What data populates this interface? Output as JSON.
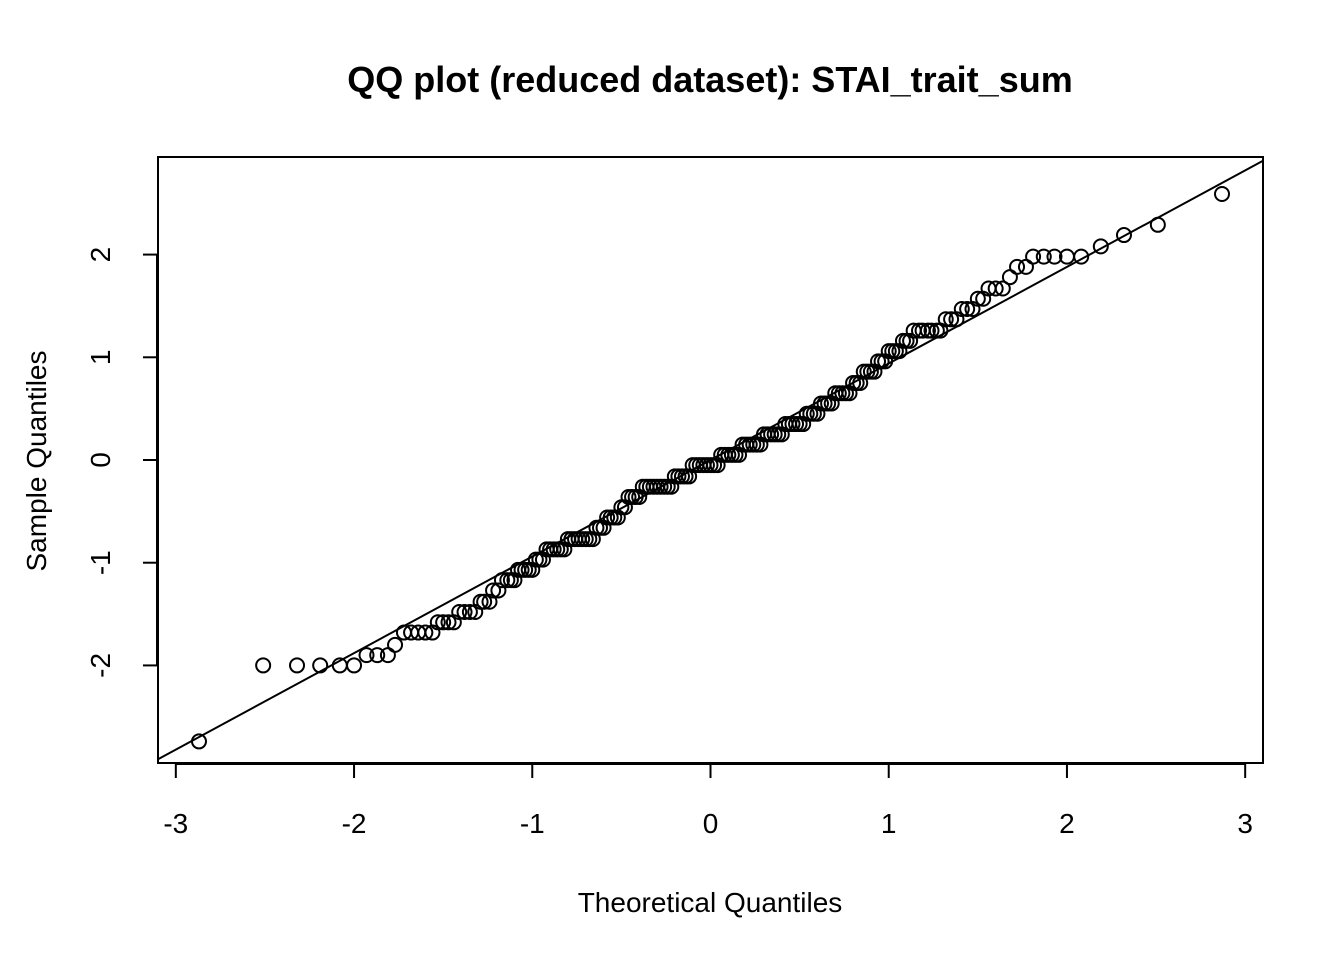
{
  "chart_data": {
    "type": "scatter",
    "title": "QQ plot (reduced dataset): STAI_trait_sum",
    "xlabel": "Theoretical Quantiles",
    "ylabel": "Sample Quantiles",
    "xlim": [
      -3.1,
      3.1
    ],
    "ylim": [
      -2.95,
      2.95
    ],
    "xticks": [
      -3,
      -2,
      -1,
      0,
      1,
      2,
      3
    ],
    "xtick_labels": [
      "-3",
      "-2",
      "-1",
      "0",
      "1",
      "2",
      "3"
    ],
    "yticks": [
      -2,
      -1,
      0,
      1,
      2
    ],
    "ytick_labels": [
      "-2",
      "-1",
      "0",
      "1",
      "2"
    ],
    "grid": false,
    "legend": "none",
    "marker": "open-circle",
    "reference_line": {
      "intercept": 0.0,
      "slope": 0.94
    },
    "series": [
      {
        "points": [
          [
            -2.87,
            -2.74
          ],
          [
            -2.51,
            -2.0
          ],
          [
            -2.32,
            -2.0
          ],
          [
            -2.19,
            -2.0
          ],
          [
            -2.08,
            -2.0
          ],
          [
            -2.0,
            -2.0
          ],
          [
            -1.93,
            -1.9
          ],
          [
            -1.87,
            -1.9
          ],
          [
            -1.81,
            -1.9
          ],
          [
            -1.77,
            -1.8
          ],
          [
            -1.72,
            -1.68
          ],
          [
            -1.68,
            -1.68
          ],
          [
            -1.64,
            -1.68
          ],
          [
            -1.6,
            -1.68
          ],
          [
            -1.56,
            -1.68
          ],
          [
            -1.53,
            -1.58
          ],
          [
            -1.5,
            -1.58
          ],
          [
            -1.47,
            -1.58
          ],
          [
            -1.44,
            -1.58
          ],
          [
            -1.41,
            -1.48
          ],
          [
            -1.38,
            -1.48
          ],
          [
            -1.35,
            -1.48
          ],
          [
            -1.32,
            -1.48
          ],
          [
            -1.29,
            -1.38
          ],
          [
            -1.27,
            -1.38
          ],
          [
            -1.24,
            -1.38
          ],
          [
            -1.22,
            -1.27
          ],
          [
            -1.19,
            -1.27
          ],
          [
            -1.17,
            -1.17
          ],
          [
            -1.14,
            -1.17
          ],
          [
            -1.12,
            -1.17
          ],
          [
            -1.1,
            -1.17
          ],
          [
            -1.08,
            -1.07
          ],
          [
            -1.06,
            -1.07
          ],
          [
            -1.04,
            -1.07
          ],
          [
            -1.02,
            -1.07
          ],
          [
            -1.0,
            -1.07
          ],
          [
            -0.98,
            -0.97
          ],
          [
            -0.96,
            -0.97
          ],
          [
            -0.94,
            -0.97
          ],
          [
            -0.92,
            -0.87
          ],
          [
            -0.9,
            -0.87
          ],
          [
            -0.88,
            -0.87
          ],
          [
            -0.86,
            -0.87
          ],
          [
            -0.84,
            -0.87
          ],
          [
            -0.82,
            -0.87
          ],
          [
            -0.8,
            -0.77
          ],
          [
            -0.78,
            -0.77
          ],
          [
            -0.76,
            -0.77
          ],
          [
            -0.74,
            -0.77
          ],
          [
            -0.72,
            -0.77
          ],
          [
            -0.7,
            -0.77
          ],
          [
            -0.68,
            -0.77
          ],
          [
            -0.66,
            -0.77
          ],
          [
            -0.64,
            -0.66
          ],
          [
            -0.62,
            -0.66
          ],
          [
            -0.6,
            -0.66
          ],
          [
            -0.58,
            -0.56
          ],
          [
            -0.56,
            -0.56
          ],
          [
            -0.54,
            -0.56
          ],
          [
            -0.52,
            -0.56
          ],
          [
            -0.5,
            -0.46
          ],
          [
            -0.48,
            -0.46
          ],
          [
            -0.46,
            -0.36
          ],
          [
            -0.44,
            -0.36
          ],
          [
            -0.42,
            -0.36
          ],
          [
            -0.4,
            -0.36
          ],
          [
            -0.38,
            -0.26
          ],
          [
            -0.36,
            -0.26
          ],
          [
            -0.34,
            -0.26
          ],
          [
            -0.32,
            -0.26
          ],
          [
            -0.3,
            -0.26
          ],
          [
            -0.28,
            -0.26
          ],
          [
            -0.26,
            -0.26
          ],
          [
            -0.24,
            -0.26
          ],
          [
            -0.22,
            -0.26
          ],
          [
            -0.2,
            -0.16
          ],
          [
            -0.18,
            -0.16
          ],
          [
            -0.16,
            -0.16
          ],
          [
            -0.14,
            -0.16
          ],
          [
            -0.12,
            -0.16
          ],
          [
            -0.1,
            -0.05
          ],
          [
            -0.08,
            -0.05
          ],
          [
            -0.06,
            -0.05
          ],
          [
            -0.04,
            -0.05
          ],
          [
            -0.02,
            -0.05
          ],
          [
            0.0,
            -0.05
          ],
          [
            0.02,
            -0.05
          ],
          [
            0.04,
            -0.05
          ],
          [
            0.06,
            0.05
          ],
          [
            0.08,
            0.05
          ],
          [
            0.1,
            0.05
          ],
          [
            0.12,
            0.05
          ],
          [
            0.14,
            0.05
          ],
          [
            0.16,
            0.05
          ],
          [
            0.18,
            0.15
          ],
          [
            0.2,
            0.15
          ],
          [
            0.22,
            0.15
          ],
          [
            0.24,
            0.15
          ],
          [
            0.26,
            0.15
          ],
          [
            0.28,
            0.15
          ],
          [
            0.3,
            0.25
          ],
          [
            0.32,
            0.25
          ],
          [
            0.34,
            0.25
          ],
          [
            0.36,
            0.25
          ],
          [
            0.38,
            0.25
          ],
          [
            0.4,
            0.25
          ],
          [
            0.42,
            0.35
          ],
          [
            0.44,
            0.35
          ],
          [
            0.46,
            0.35
          ],
          [
            0.48,
            0.35
          ],
          [
            0.5,
            0.35
          ],
          [
            0.52,
            0.35
          ],
          [
            0.54,
            0.45
          ],
          [
            0.56,
            0.45
          ],
          [
            0.58,
            0.45
          ],
          [
            0.6,
            0.45
          ],
          [
            0.62,
            0.55
          ],
          [
            0.64,
            0.55
          ],
          [
            0.66,
            0.55
          ],
          [
            0.68,
            0.55
          ],
          [
            0.7,
            0.65
          ],
          [
            0.72,
            0.65
          ],
          [
            0.74,
            0.65
          ],
          [
            0.76,
            0.65
          ],
          [
            0.78,
            0.65
          ],
          [
            0.8,
            0.75
          ],
          [
            0.82,
            0.75
          ],
          [
            0.84,
            0.75
          ],
          [
            0.86,
            0.86
          ],
          [
            0.88,
            0.86
          ],
          [
            0.9,
            0.86
          ],
          [
            0.92,
            0.86
          ],
          [
            0.94,
            0.96
          ],
          [
            0.96,
            0.96
          ],
          [
            0.98,
            0.96
          ],
          [
            1.0,
            1.06
          ],
          [
            1.02,
            1.06
          ],
          [
            1.04,
            1.06
          ],
          [
            1.06,
            1.06
          ],
          [
            1.08,
            1.16
          ],
          [
            1.1,
            1.16
          ],
          [
            1.12,
            1.16
          ],
          [
            1.14,
            1.26
          ],
          [
            1.17,
            1.26
          ],
          [
            1.19,
            1.26
          ],
          [
            1.22,
            1.26
          ],
          [
            1.24,
            1.26
          ],
          [
            1.27,
            1.26
          ],
          [
            1.29,
            1.26
          ],
          [
            1.32,
            1.37
          ],
          [
            1.35,
            1.37
          ],
          [
            1.38,
            1.37
          ],
          [
            1.41,
            1.47
          ],
          [
            1.44,
            1.47
          ],
          [
            1.47,
            1.47
          ],
          [
            1.5,
            1.57
          ],
          [
            1.53,
            1.57
          ],
          [
            1.56,
            1.67
          ],
          [
            1.6,
            1.67
          ],
          [
            1.64,
            1.67
          ],
          [
            1.68,
            1.78
          ],
          [
            1.72,
            1.88
          ],
          [
            1.77,
            1.88
          ],
          [
            1.81,
            1.98
          ],
          [
            1.87,
            1.98
          ],
          [
            1.93,
            1.98
          ],
          [
            2.0,
            1.98
          ],
          [
            2.08,
            1.98
          ],
          [
            2.19,
            2.08
          ],
          [
            2.32,
            2.19
          ],
          [
            2.51,
            2.29
          ],
          [
            2.87,
            2.59
          ]
        ]
      }
    ]
  }
}
